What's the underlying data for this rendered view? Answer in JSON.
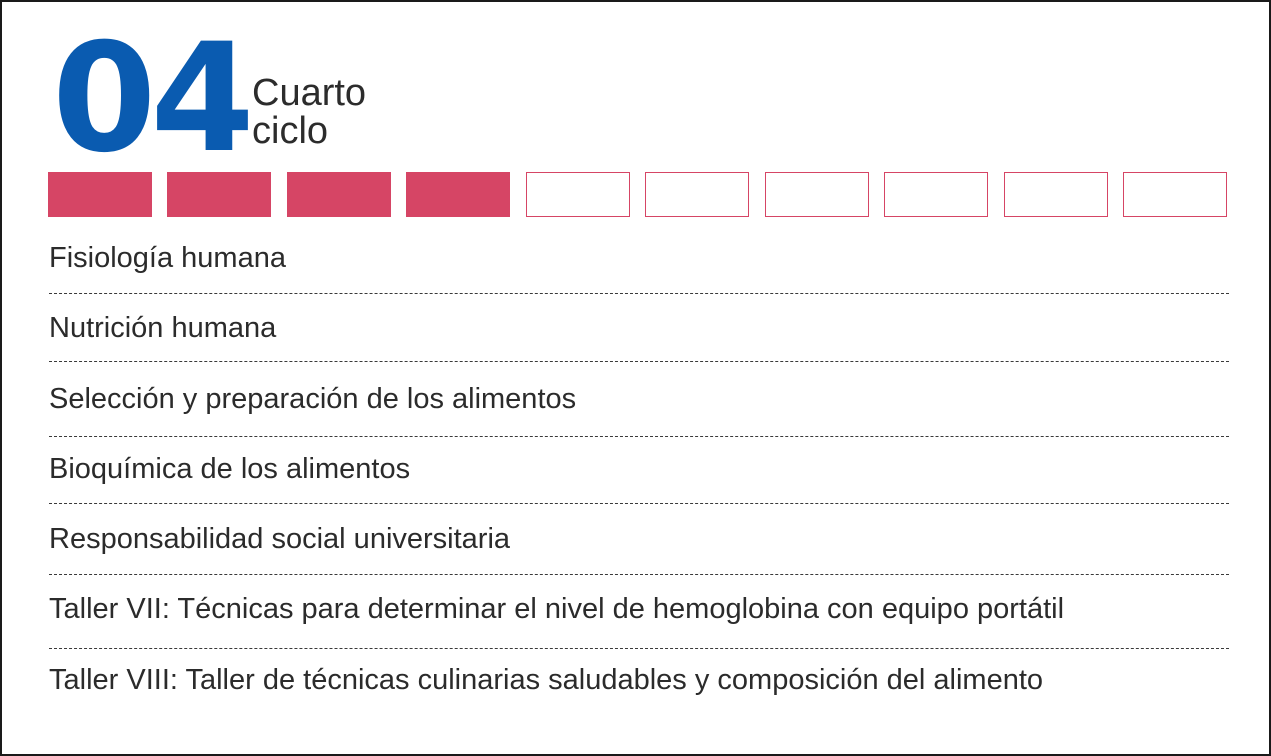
{
  "header": {
    "number": "04",
    "cycle_line1": "Cuarto",
    "cycle_line2": "ciclo"
  },
  "progress": {
    "total": 10,
    "completed": 4,
    "color": "#d64565"
  },
  "accent_color": "#0a5bb0",
  "courses": [
    "Fisiología humana",
    "Nutrición humana",
    "Selección y preparación de los alimentos",
    "Bioquímica de los alimentos",
    "Responsabilidad social universitaria",
    "Taller VII: Técnicas para determinar el nivel de hemoglobina con equipo portátil",
    "Taller VIII: Taller de técnicas culinarias saludables y composición del alimento"
  ]
}
